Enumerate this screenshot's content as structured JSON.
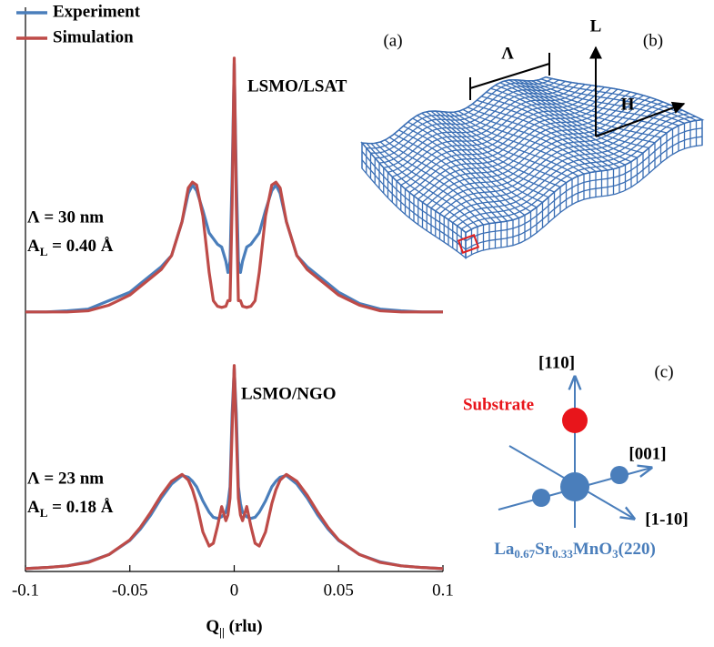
{
  "chart_data": {
    "type": "line",
    "panel_label": "(a)",
    "xlabel": {
      "main": "Q",
      "sub": "||",
      "rest": " (rlu)"
    },
    "x": [
      -0.1,
      -0.09,
      -0.08,
      -0.07,
      -0.06,
      -0.05,
      -0.045,
      -0.04,
      -0.035,
      -0.03,
      -0.025,
      -0.022,
      -0.02,
      -0.018,
      -0.015,
      -0.012,
      -0.01,
      -0.008,
      -0.006,
      -0.004,
      -0.003,
      -0.002,
      -0.001,
      0,
      0.001,
      0.002,
      0.003,
      0.004,
      0.006,
      0.008,
      0.01,
      0.012,
      0.015,
      0.018,
      0.02,
      0.022,
      0.025,
      0.03,
      0.035,
      0.04,
      0.045,
      0.05,
      0.06,
      0.07,
      0.08,
      0.09,
      0.1
    ],
    "xlim": [
      -0.1,
      0.1
    ],
    "xticks": [
      -0.1,
      -0.05,
      0,
      0.05,
      0.1
    ],
    "ylim": [
      0,
      10
    ],
    "legend_position": "upper left",
    "series": [
      {
        "name": "Experiment",
        "color": "#4a7ebb",
        "values": [
          4.6,
          4.6,
          4.62,
          4.65,
          4.8,
          4.95,
          5.1,
          5.25,
          5.4,
          5.6,
          6.2,
          6.7,
          6.85,
          6.75,
          6.4,
          6.0,
          5.9,
          5.8,
          5.75,
          5.5,
          5.3,
          5.5,
          7.0,
          9.0,
          7.0,
          5.5,
          5.3,
          5.5,
          5.75,
          5.8,
          5.9,
          6.0,
          6.4,
          6.75,
          6.85,
          6.7,
          6.2,
          5.6,
          5.4,
          5.25,
          5.1,
          4.95,
          4.75,
          4.65,
          4.62,
          4.6,
          4.6
        ]
      },
      {
        "name": "Simulation",
        "color": "#be4b48",
        "values": [
          4.6,
          4.6,
          4.6,
          4.62,
          4.72,
          4.9,
          5.05,
          5.2,
          5.35,
          5.6,
          6.2,
          6.8,
          6.9,
          6.85,
          6.3,
          5.3,
          4.8,
          4.7,
          4.68,
          4.7,
          4.8,
          4.8,
          6.5,
          9.1,
          6.5,
          4.8,
          4.8,
          4.7,
          4.68,
          4.7,
          4.8,
          5.3,
          6.3,
          6.85,
          6.9,
          6.8,
          6.2,
          5.6,
          5.35,
          5.2,
          5.05,
          4.9,
          4.72,
          4.62,
          4.6,
          4.6,
          4.6
        ]
      },
      {
        "color": "#4a7ebb",
        "values": [
          0.05,
          0.07,
          0.1,
          0.17,
          0.3,
          0.55,
          0.75,
          1.0,
          1.3,
          1.55,
          1.7,
          1.67,
          1.6,
          1.5,
          1.25,
          1.05,
          0.96,
          0.94,
          0.97,
          1.05,
          1.2,
          1.5,
          2.8,
          3.6,
          2.8,
          1.5,
          1.2,
          1.05,
          0.97,
          0.94,
          0.96,
          1.05,
          1.25,
          1.5,
          1.6,
          1.67,
          1.7,
          1.55,
          1.3,
          1.0,
          0.75,
          0.55,
          0.3,
          0.17,
          0.1,
          0.07,
          0.05
        ]
      },
      {
        "color": "#be4b48",
        "values": [
          0.05,
          0.07,
          0.1,
          0.16,
          0.3,
          0.56,
          0.78,
          1.05,
          1.35,
          1.6,
          1.72,
          1.62,
          1.45,
          1.2,
          0.7,
          0.45,
          0.5,
          0.8,
          1.15,
          0.9,
          1.0,
          1.3,
          2.5,
          3.65,
          2.5,
          1.3,
          1.0,
          0.9,
          1.15,
          0.8,
          0.5,
          0.45,
          0.7,
          1.2,
          1.45,
          1.62,
          1.72,
          1.6,
          1.35,
          1.05,
          0.78,
          0.56,
          0.3,
          0.16,
          0.1,
          0.07,
          0.05
        ]
      }
    ],
    "annotations": [
      {
        "text": "LSMO/LSAT"
      },
      {
        "text": "Λ = 30 nm"
      },
      {
        "main": "A",
        "sub": "L",
        "rest": " = 0.40 Å"
      },
      {
        "text": "LSMO/NGO"
      },
      {
        "text": "Λ = 23 nm"
      },
      {
        "main": "A",
        "sub": "L",
        "rest": " = 0.18 Å"
      }
    ]
  },
  "panel_b": {
    "label": "(b)",
    "period": "Λ",
    "axis_l": "L",
    "axis_h": "H"
  },
  "panel_c": {
    "label": "(c)",
    "dir_110": "[110]",
    "substrate": "Substrate",
    "dir_001": "[001]",
    "dir_1m10": "[1-10]",
    "formula": [
      {
        "t": "La"
      },
      {
        "s": "0.67"
      },
      {
        "t": "Sr"
      },
      {
        "s": "0.33"
      },
      {
        "t": "MnO"
      },
      {
        "s": "3"
      },
      {
        "t": "(220)"
      }
    ]
  }
}
